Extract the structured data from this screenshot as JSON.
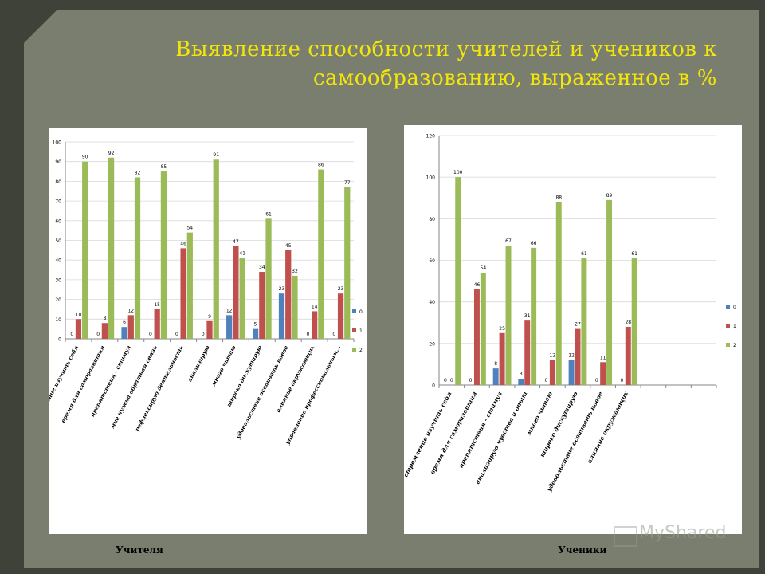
{
  "slide": {
    "title_line1": "Выявление способности  учителей и учеников к",
    "title_line2": "самообразованию, выраженное в %"
  },
  "captions": {
    "teachers": "Учителя",
    "students": "Ученики"
  },
  "watermark": "MyShared",
  "colors": {
    "s0": "#4f81bd",
    "s1": "#c0504d",
    "s2": "#9bbb59"
  },
  "chart_data": [
    {
      "type": "bar",
      "ylim": [
        0,
        100
      ],
      "yticks": [
        0,
        10,
        20,
        30,
        40,
        50,
        60,
        70,
        80,
        90,
        100
      ],
      "legend": "right",
      "categories": [
        "стремление изучить себя",
        "время для саморазвития",
        "препятствия - стимул",
        "мне нужна обратная связь",
        "рефлексирую деятельность",
        "анализирую",
        "много читаю",
        "широко дискутирую",
        "удовольствие осваивать новое",
        "влияние окружающих",
        "управление профессиональным..."
      ],
      "series": [
        {
          "name": "0",
          "values": [
            0,
            0,
            6,
            0,
            0,
            0,
            12,
            5,
            23,
            0,
            0
          ]
        },
        {
          "name": "1",
          "values": [
            10,
            8,
            12,
            15,
            46,
            9,
            47,
            34,
            45,
            14,
            23
          ]
        },
        {
          "name": "2",
          "values": [
            90,
            92,
            82,
            85,
            54,
            91,
            41,
            61,
            32,
            86,
            77
          ]
        }
      ],
      "value_labels": [
        [
          "0",
          "0",
          "6",
          "0",
          "0",
          "0",
          "12",
          "5",
          "23",
          "0",
          "0"
        ],
        [
          "10",
          "8",
          "12",
          "15",
          "46",
          "9",
          "47",
          "34",
          "45",
          "14",
          "23"
        ],
        [
          "90",
          "92",
          "82",
          "85",
          "54",
          "91",
          "41",
          "61",
          "32",
          "86",
          "77"
        ]
      ]
    },
    {
      "type": "bar",
      "ylim": [
        0,
        120
      ],
      "yticks": [
        0,
        20,
        40,
        60,
        80,
        100,
        120
      ],
      "legend": "right",
      "slots": 11,
      "categories": [
        "стремление изучить себя",
        "время для саморазвития",
        "препятствия - стимул",
        "анализирую чувства и опыт",
        "много читаю",
        "широко дискутирую",
        "удовольствие осваивать новое",
        "влияние окружающих"
      ],
      "series": [
        {
          "name": "0",
          "values": [
            0,
            0,
            8,
            3,
            0,
            12,
            0,
            0
          ]
        },
        {
          "name": "1",
          "values": [
            0,
            46,
            25,
            31,
            12,
            27,
            11,
            28
          ]
        },
        {
          "name": "2",
          "values": [
            100,
            54,
            67,
            66,
            88,
            61,
            89,
            61
          ]
        }
      ],
      "value_labels": [
        [
          "0",
          "0",
          "8",
          "3",
          "0",
          "12",
          "0",
          "0"
        ],
        [
          "0",
          "46",
          "25",
          "31",
          "12",
          "27",
          "11",
          "28"
        ],
        [
          "100",
          "54",
          "67",
          "66",
          "88",
          "61",
          "89",
          "61"
        ]
      ]
    }
  ]
}
